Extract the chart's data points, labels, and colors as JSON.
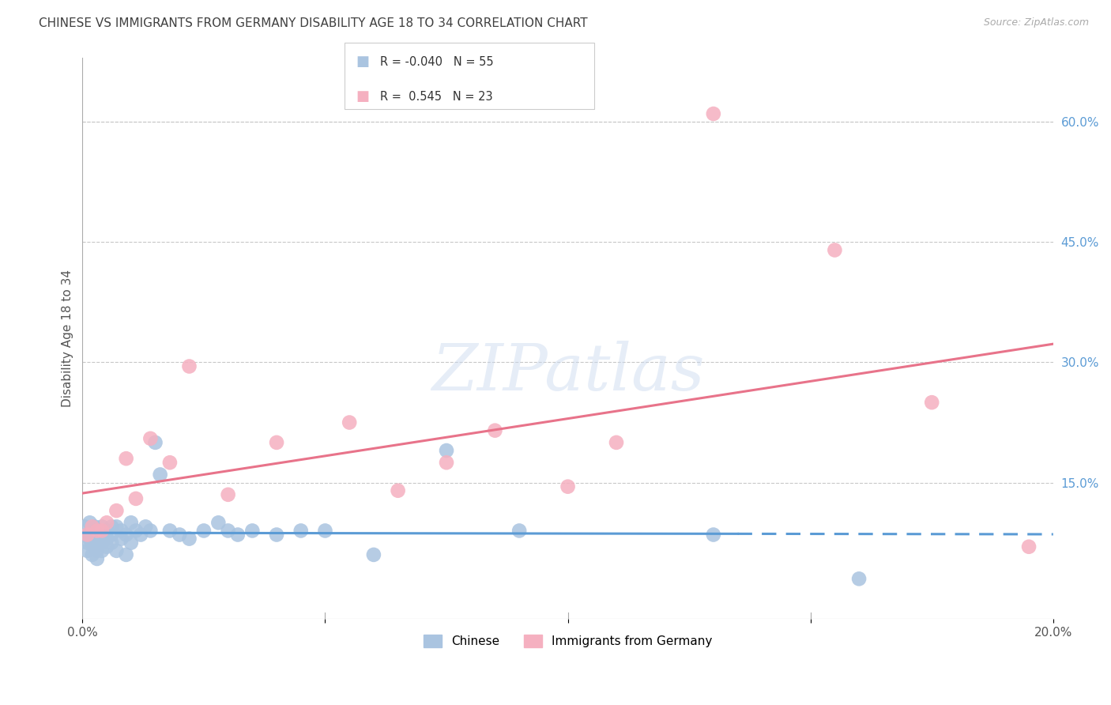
{
  "title": "CHINESE VS IMMIGRANTS FROM GERMANY DISABILITY AGE 18 TO 34 CORRELATION CHART",
  "source": "Source: ZipAtlas.com",
  "ylabel": "Disability Age 18 to 34",
  "xlim": [
    0.0,
    0.2
  ],
  "ylim": [
    -0.02,
    0.68
  ],
  "yticks_right": [
    0.0,
    0.15,
    0.3,
    0.45,
    0.6
  ],
  "ytick_labels_right": [
    "",
    "15.0%",
    "30.0%",
    "45.0%",
    "60.0%"
  ],
  "watermark": "ZIPatlas",
  "chinese_x": [
    0.0005,
    0.001,
    0.001,
    0.001,
    0.0015,
    0.0015,
    0.002,
    0.002,
    0.002,
    0.0025,
    0.0025,
    0.003,
    0.003,
    0.003,
    0.003,
    0.0035,
    0.004,
    0.004,
    0.004,
    0.005,
    0.005,
    0.005,
    0.006,
    0.006,
    0.006,
    0.007,
    0.007,
    0.008,
    0.008,
    0.009,
    0.009,
    0.01,
    0.01,
    0.011,
    0.012,
    0.013,
    0.014,
    0.015,
    0.016,
    0.018,
    0.02,
    0.022,
    0.025,
    0.028,
    0.03,
    0.032,
    0.035,
    0.04,
    0.045,
    0.05,
    0.06,
    0.075,
    0.09,
    0.13,
    0.16
  ],
  "chinese_y": [
    0.095,
    0.085,
    0.075,
    0.065,
    0.1,
    0.08,
    0.09,
    0.075,
    0.06,
    0.095,
    0.07,
    0.085,
    0.08,
    0.065,
    0.055,
    0.09,
    0.095,
    0.075,
    0.065,
    0.09,
    0.08,
    0.07,
    0.095,
    0.085,
    0.075,
    0.095,
    0.065,
    0.09,
    0.08,
    0.085,
    0.06,
    0.1,
    0.075,
    0.09,
    0.085,
    0.095,
    0.09,
    0.2,
    0.16,
    0.09,
    0.085,
    0.08,
    0.09,
    0.1,
    0.09,
    0.085,
    0.09,
    0.085,
    0.09,
    0.09,
    0.06,
    0.19,
    0.09,
    0.085,
    0.03
  ],
  "germany_x": [
    0.001,
    0.002,
    0.003,
    0.004,
    0.005,
    0.007,
    0.009,
    0.011,
    0.014,
    0.018,
    0.022,
    0.03,
    0.04,
    0.055,
    0.065,
    0.075,
    0.085,
    0.1,
    0.11,
    0.13,
    0.155,
    0.175,
    0.195
  ],
  "germany_y": [
    0.085,
    0.095,
    0.09,
    0.09,
    0.1,
    0.115,
    0.18,
    0.13,
    0.205,
    0.175,
    0.295,
    0.135,
    0.2,
    0.225,
    0.14,
    0.175,
    0.215,
    0.145,
    0.2,
    0.61,
    0.44,
    0.25,
    0.07
  ],
  "chinese_line_color": "#5b9bd5",
  "germany_line_color": "#e8738a",
  "chinese_dot_color": "#aac4e0",
  "germany_dot_color": "#f5b0c0",
  "bg_color": "#ffffff",
  "grid_color": "#c8c8c8",
  "title_color": "#404040",
  "right_tick_color": "#5b9bd5",
  "chinese_line_solid_end": 0.135,
  "germany_line_solid_end": 0.2
}
